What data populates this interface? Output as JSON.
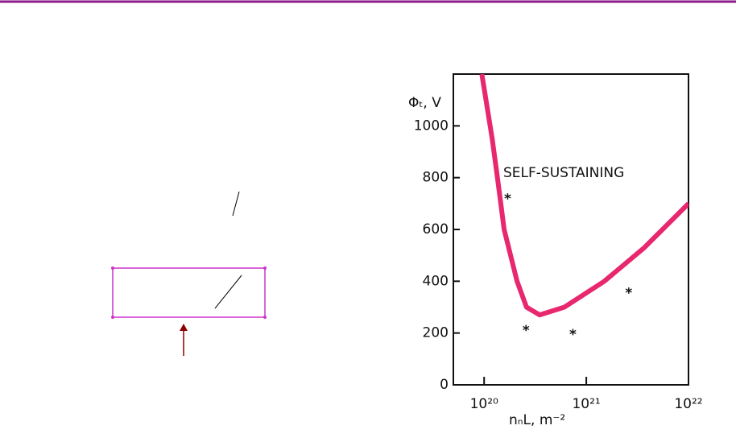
{
  "chart_data": {
    "type": "line",
    "y_label": "Φₜ, V",
    "x_label": "nₙL, m⁻²",
    "annotation": "SELF-SUSTAINING",
    "xscale": "log",
    "xlim": [
      5e+19,
      1e+22
    ],
    "ylim": [
      0,
      1200
    ],
    "xticks": [
      {
        "value": 1e+20,
        "label": "10²⁰"
      },
      {
        "value": 1e+21,
        "label": "10²¹"
      },
      {
        "value": 1e+22,
        "label": "10²²"
      }
    ],
    "yticks": [
      0,
      200,
      400,
      600,
      800,
      1000
    ],
    "series": [
      {
        "color": "#e8286e",
        "x": [
          9.5e+19,
          1.2e+20,
          1.35e+20,
          1.57e+20,
          2.1e+20,
          2.6e+20,
          3.5e+20,
          6.1e+20,
          1.5e+21,
          3.7e+21,
          1e+22
        ],
        "y": [
          1200,
          950,
          800,
          600,
          400,
          300,
          270,
          300,
          400,
          530,
          700
        ]
      }
    ],
    "points": {
      "x": [
        1.7e+20,
        2.57e+20,
        7.4e+20,
        2.6e+21
      ],
      "y": [
        729,
        220,
        205,
        366
      ]
    }
  }
}
